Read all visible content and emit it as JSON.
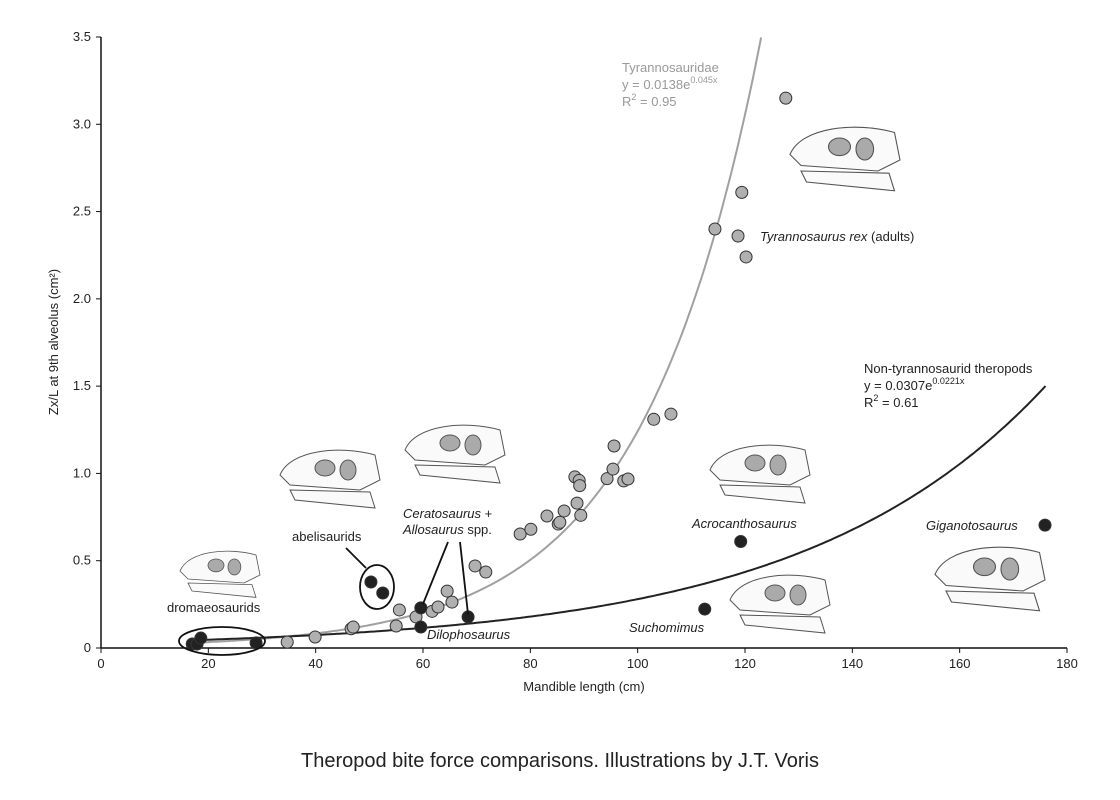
{
  "caption": "Theropod bite force comparisons. Illustrations by J.T. Voris",
  "chart_data": {
    "type": "scatter",
    "xlabel": "Mandible length (cm)",
    "ylabel": "Zx/L at 9th alveolus (cm²)",
    "xlim": [
      0,
      180
    ],
    "ylim": [
      0,
      3.5
    ],
    "xticks": [
      0,
      20,
      40,
      60,
      80,
      100,
      120,
      140,
      160,
      180
    ],
    "yticks": [
      0,
      0.5,
      1.0,
      1.5,
      2.0,
      2.5,
      3.0,
      3.5
    ],
    "ytick_labels": [
      "0",
      "0.5",
      "1.0",
      "1.5",
      "2.0",
      "2.5",
      "3.0",
      "3.5"
    ],
    "grid": false,
    "colors": {
      "tyrannosauridae": "#a0a0a0",
      "non_tyrannosaurid": "#222222"
    },
    "series": [
      {
        "name": "Tyrannosauridae",
        "color": "#a0a0a0",
        "fit": {
          "label": "Tyrannosauridae",
          "eq": "y = 0.0138e",
          "exp": "0.045x",
          "r2": "R",
          "r2sup": "2",
          "r2val": " = 0.95",
          "a": 0.0138,
          "b": 0.045,
          "xrange": [
            17,
            123
          ]
        },
        "points": [
          [
            34.7,
            0.034
          ],
          [
            39.9,
            0.063
          ],
          [
            46.6,
            0.11
          ],
          [
            47.0,
            0.12
          ],
          [
            55.0,
            0.126
          ],
          [
            55.6,
            0.218
          ],
          [
            58.7,
            0.178
          ],
          [
            61.7,
            0.21
          ],
          [
            62.8,
            0.235
          ],
          [
            64.5,
            0.326
          ],
          [
            65.4,
            0.263
          ],
          [
            69.7,
            0.47
          ],
          [
            71.7,
            0.435
          ],
          [
            78.1,
            0.653
          ],
          [
            80.1,
            0.68
          ],
          [
            83.1,
            0.756
          ],
          [
            85.2,
            0.71
          ],
          [
            85.5,
            0.72
          ],
          [
            86.3,
            0.785
          ],
          [
            88.3,
            0.98
          ],
          [
            89.1,
            0.96
          ],
          [
            89.2,
            0.93
          ],
          [
            88.7,
            0.83
          ],
          [
            89.4,
            0.76
          ],
          [
            94.3,
            0.97
          ],
          [
            95.4,
            1.025
          ],
          [
            95.6,
            1.157
          ],
          [
            97.4,
            0.957
          ],
          [
            98.2,
            0.968
          ],
          [
            103.0,
            1.31
          ],
          [
            106.2,
            1.34
          ],
          [
            114.4,
            2.4
          ],
          [
            119.4,
            2.61
          ],
          [
            118.7,
            2.36
          ],
          [
            120.2,
            2.24
          ],
          [
            127.6,
            3.15
          ]
        ]
      },
      {
        "name": "Non-tyrannosaurid theropods",
        "color": "#222222",
        "fit": {
          "label": "Non-tyrannosaurid theropods",
          "eq": "y = 0.0307e",
          "exp": "0.0221x",
          "r2": "R",
          "r2sup": "2",
          "r2val": " = 0.61",
          "a": 0.0307,
          "b": 0.0221,
          "xrange": [
            17,
            176
          ]
        },
        "points": [
          [
            17.0,
            0.023
          ],
          [
            17.9,
            0.023
          ],
          [
            18.6,
            0.057
          ],
          [
            28.9,
            0.029
          ],
          [
            50.3,
            0.378
          ],
          [
            52.5,
            0.315
          ],
          [
            59.6,
            0.23
          ],
          [
            59.6,
            0.12
          ],
          [
            68.4,
            0.178
          ],
          [
            119.2,
            0.61
          ],
          [
            112.5,
            0.223
          ],
          [
            175.9,
            0.704
          ]
        ]
      }
    ],
    "annotations": {
      "dromaeosaurids": "dromaeosaurids",
      "abelisaurids": "abelisaurids",
      "cerato1": "Ceratosaurus",
      "cerato2": " +",
      "allo1": "Allosaurus",
      "allo2": " spp.",
      "dilophosaurus": "Dilophosaurus",
      "suchomimus": "Suchomimus",
      "acrocanthosaurus": "Acrocanthosaurus",
      "giganotosaurus": "Giganotosaurus",
      "trex1": "Tyrannosaurus rex",
      "trex2": " (adults)"
    }
  }
}
